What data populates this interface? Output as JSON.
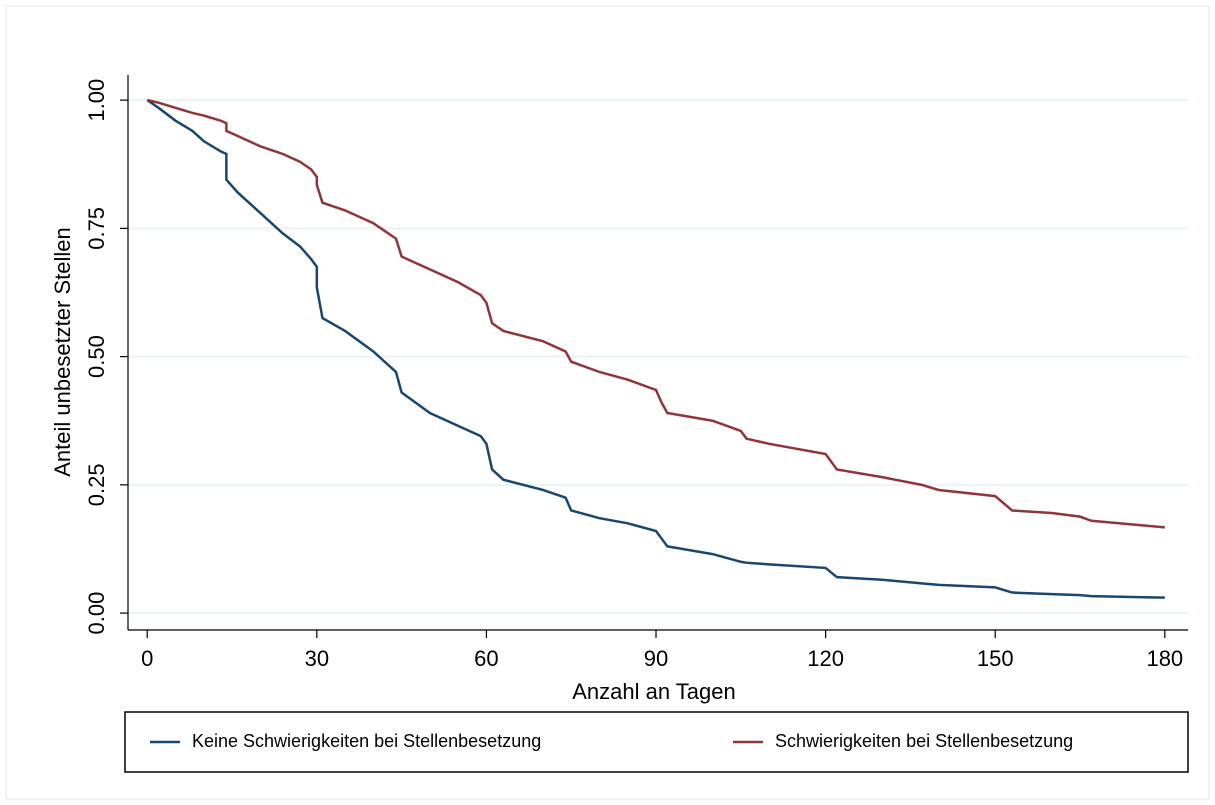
{
  "chart_data": {
    "type": "line",
    "x_label": "Anzahl an Tagen",
    "y_label": "Anteil unbesetzter Stellen",
    "x": [
      0,
      2,
      5,
      8,
      10,
      13,
      14,
      14,
      16,
      20,
      24,
      27,
      29,
      30,
      30,
      31,
      35,
      40,
      44,
      45,
      50,
      55,
      59,
      60,
      61,
      63,
      70,
      74,
      75,
      80,
      85,
      90,
      91,
      92,
      100,
      105,
      106,
      110,
      120,
      122,
      130,
      137,
      140,
      150,
      153,
      160,
      165,
      167,
      180
    ],
    "series": [
      {
        "name": "Keine Schwierigkeiten bei Stellenbesetzung",
        "color": "#1a476f",
        "values": [
          1.0,
          0.985,
          0.96,
          0.94,
          0.92,
          0.9,
          0.895,
          0.845,
          0.82,
          0.78,
          0.74,
          0.715,
          0.69,
          0.675,
          0.635,
          0.575,
          0.55,
          0.51,
          0.47,
          0.43,
          0.39,
          0.365,
          0.345,
          0.33,
          0.28,
          0.26,
          0.24,
          0.225,
          0.2,
          0.185,
          0.175,
          0.16,
          0.145,
          0.13,
          0.115,
          0.1,
          0.098,
          0.095,
          0.088,
          0.07,
          0.065,
          0.058,
          0.055,
          0.05,
          0.04,
          0.037,
          0.035,
          0.033,
          0.03
        ]
      },
      {
        "name": "Schwierigkeiten bei Stellenbesetzung",
        "color": "#90353b",
        "values": [
          1.0,
          0.995,
          0.985,
          0.975,
          0.97,
          0.96,
          0.955,
          0.94,
          0.93,
          0.91,
          0.895,
          0.88,
          0.865,
          0.85,
          0.835,
          0.8,
          0.785,
          0.76,
          0.73,
          0.695,
          0.67,
          0.645,
          0.62,
          0.605,
          0.565,
          0.55,
          0.53,
          0.51,
          0.49,
          0.47,
          0.455,
          0.435,
          0.41,
          0.39,
          0.375,
          0.355,
          0.34,
          0.33,
          0.31,
          0.28,
          0.265,
          0.25,
          0.24,
          0.228,
          0.2,
          0.195,
          0.188,
          0.18,
          0.167
        ]
      }
    ],
    "xlim": [
      -3.4,
      184.1
    ],
    "ylim": [
      -0.033,
      1.049
    ],
    "xticks": [
      0,
      30,
      60,
      90,
      120,
      150,
      180
    ],
    "yticks": [
      {
        "value": 0,
        "label": "0.00"
      },
      {
        "value": 0.25,
        "label": "0.25"
      },
      {
        "value": 0.5,
        "label": "0.50"
      },
      {
        "value": 0.75,
        "label": "0.75"
      },
      {
        "value": 1,
        "label": "1.00"
      }
    ],
    "grid": true,
    "legend": "bottom"
  }
}
